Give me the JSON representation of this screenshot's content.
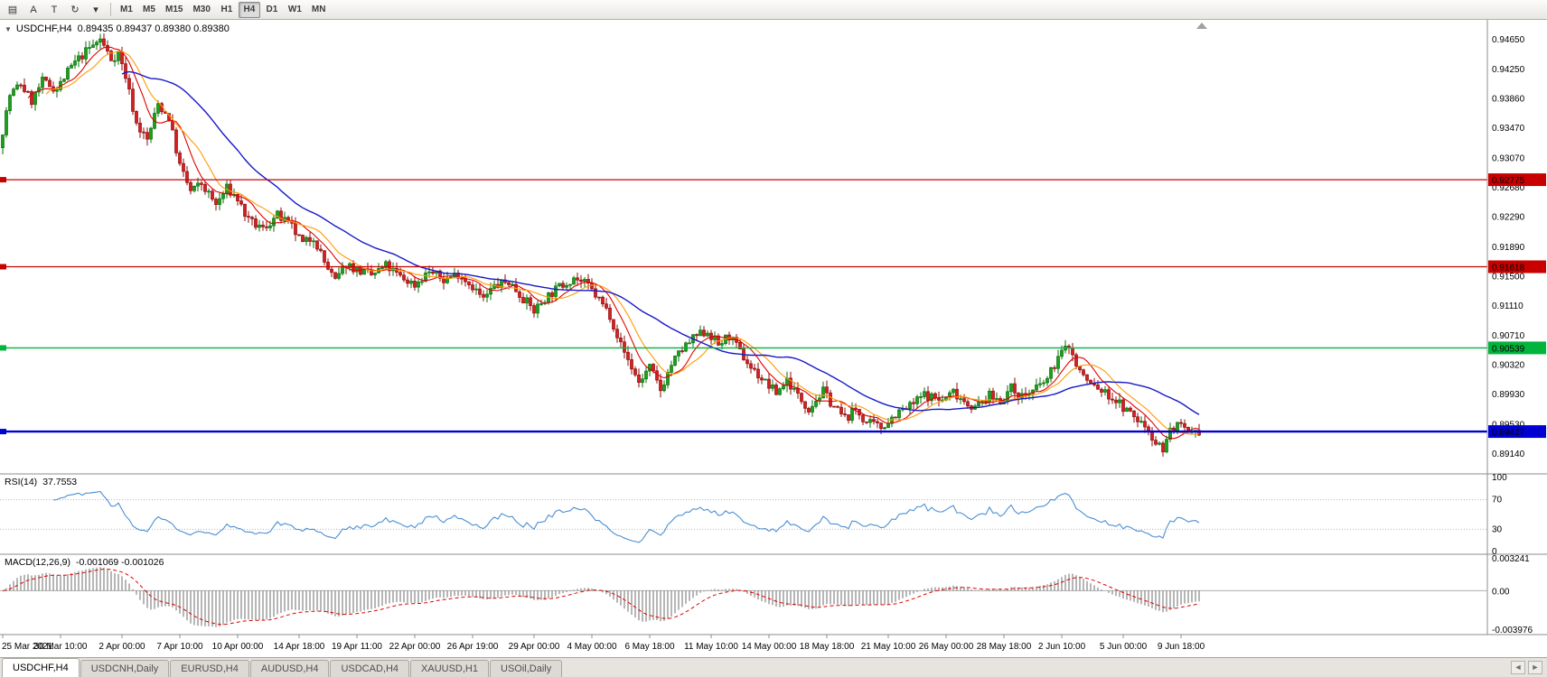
{
  "toolbar": {
    "left_buttons": [
      {
        "name": "chart-window-icon",
        "glyph": "▤"
      },
      {
        "name": "annotation-text-icon",
        "glyph": "A"
      },
      {
        "name": "text-box-icon",
        "glyph": "T"
      },
      {
        "name": "cycle-lines-icon",
        "glyph": "↻"
      },
      {
        "name": "dropdown-arrow-icon",
        "glyph": "▾"
      }
    ],
    "timeframes": [
      "M1",
      "M5",
      "M15",
      "M30",
      "H1",
      "H4",
      "D1",
      "W1",
      "MN"
    ],
    "active_timeframe": "H4"
  },
  "chart": {
    "title": "USDCHF,H4",
    "ohlc_readout": "0.89435 0.89437 0.89380 0.89380",
    "collapse_arrow": "▼",
    "price_axis_labels": [
      "0.94650",
      "0.94250",
      "0.93860",
      "0.93470",
      "0.93070",
      "0.92680",
      "0.92290",
      "0.91890",
      "0.91500",
      "0.91110",
      "0.90710",
      "0.90320",
      "0.89930",
      "0.89530",
      "0.89140"
    ],
    "hlines": [
      {
        "price": 0.92775,
        "label": "0.92775",
        "color": "#c80000",
        "width": 1.2
      },
      {
        "price": 0.91618,
        "label": "0.91618",
        "color": "#c80000",
        "width": 1.2
      },
      {
        "price": 0.90539,
        "label": "0.90539",
        "color": "#00b43c",
        "width": 1.4
      },
      {
        "price": 0.89427,
        "label": "0.89427",
        "color": "#0000d2",
        "width": 2.4
      }
    ],
    "colors": {
      "bull_fill": "#19a119",
      "bull_stroke": "#0b6e0b",
      "bear_fill": "#d42020",
      "bear_stroke": "#8f0b0b",
      "ma_fast": "#e00000",
      "ma_mid": "#ff9900",
      "ma_slow": "#1818c8",
      "axis_line": "#8c8c8c",
      "shift_marker": "#a0a0a0"
    }
  },
  "rsi": {
    "label": "RSI(14)",
    "value": "37.7553",
    "axis_labels": [
      "100",
      "70",
      "30",
      "0"
    ],
    "levels": [
      70,
      30
    ],
    "line_color": "#4a8fd2"
  },
  "macd": {
    "label": "MACD(12,26,9)",
    "values": "-0.001069 -0.001026",
    "axis_labels": [
      "0.003241",
      "0.00",
      "-0.003976"
    ],
    "axis_max": 0.003241,
    "axis_min": -0.003976,
    "hist_color": "#6e6e6e",
    "signal_color": "#e00000"
  },
  "time_axis": {
    "labels": [
      "25 Mar 2021",
      "30 Mar 10:00",
      "2 Apr 00:00",
      "7 Apr 10:00",
      "10 Apr 00:00",
      "14 Apr 18:00",
      "19 Apr 11:00",
      "22 Apr 00:00",
      "26 Apr 19:00",
      "29 Apr 00:00",
      "4 May 00:00",
      "6 May 18:00",
      "11 May 10:00",
      "14 May 00:00",
      "18 May 18:00",
      "21 May 10:00",
      "26 May 00:00",
      "28 May 18:00",
      "2 Jun 10:00",
      "5 Jun 00:00",
      "9 Jun 18:00"
    ]
  },
  "tabs": {
    "items": [
      "USDCHF,H4",
      "USDCNH,Daily",
      "EURUSD,H4",
      "AUDUSD,H4",
      "USDCAD,H4",
      "XAUUSD,H1",
      "USOil,Daily"
    ],
    "active_index": 0,
    "scroll_left": "◄",
    "scroll_right": "►"
  },
  "chart_data": {
    "type": "candlestick",
    "symbol": "USDCHF",
    "timeframe": "H4",
    "num_candles": 332,
    "seed": 7,
    "noise": 0.0013,
    "wick": 0.0009,
    "last_close": 0.8938,
    "y_range": [
      0.889,
      0.949
    ],
    "indicators": {
      "ma_periods": [
        8,
        13,
        34
      ],
      "rsi_period": 14,
      "macd": [
        12,
        26,
        9
      ]
    },
    "price_keyframes": [
      [
        0,
        0.932
      ],
      [
        3,
        0.939
      ],
      [
        6,
        0.9405
      ],
      [
        9,
        0.9382
      ],
      [
        12,
        0.9408
      ],
      [
        16,
        0.9398
      ],
      [
        20,
        0.9428
      ],
      [
        24,
        0.9448
      ],
      [
        28,
        0.9464
      ],
      [
        31,
        0.9438
      ],
      [
        33,
        0.9446
      ],
      [
        35,
        0.9415
      ],
      [
        38,
        0.9352
      ],
      [
        41,
        0.933
      ],
      [
        44,
        0.9378
      ],
      [
        47,
        0.936
      ],
      [
        50,
        0.9296
      ],
      [
        53,
        0.9262
      ],
      [
        56,
        0.9272
      ],
      [
        60,
        0.9244
      ],
      [
        63,
        0.9266
      ],
      [
        66,
        0.9252
      ],
      [
        69,
        0.9222
      ],
      [
        73,
        0.9212
      ],
      [
        77,
        0.923
      ],
      [
        81,
        0.9214
      ],
      [
        84,
        0.9192
      ],
      [
        87,
        0.9202
      ],
      [
        90,
        0.9168
      ],
      [
        93,
        0.9142
      ],
      [
        96,
        0.9166
      ],
      [
        99,
        0.9158
      ],
      [
        103,
        0.915
      ],
      [
        107,
        0.9163
      ],
      [
        111,
        0.9148
      ],
      [
        115,
        0.9138
      ],
      [
        119,
        0.9156
      ],
      [
        123,
        0.9144
      ],
      [
        127,
        0.9153
      ],
      [
        131,
        0.9136
      ],
      [
        134,
        0.9118
      ],
      [
        137,
        0.9136
      ],
      [
        141,
        0.9142
      ],
      [
        145,
        0.912
      ],
      [
        148,
        0.9103
      ],
      [
        151,
        0.912
      ],
      [
        155,
        0.9135
      ],
      [
        159,
        0.9148
      ],
      [
        163,
        0.9136
      ],
      [
        166,
        0.9118
      ],
      [
        169,
        0.9098
      ],
      [
        172,
        0.9058
      ],
      [
        175,
        0.9028
      ],
      [
        177,
        0.9008
      ],
      [
        180,
        0.9028
      ],
      [
        183,
        0.8998
      ],
      [
        186,
        0.9032
      ],
      [
        189,
        0.9052
      ],
      [
        193,
        0.907
      ],
      [
        196,
        0.9076
      ],
      [
        199,
        0.9058
      ],
      [
        202,
        0.907
      ],
      [
        205,
        0.9048
      ],
      [
        208,
        0.9028
      ],
      [
        212,
        0.9008
      ],
      [
        215,
        0.8994
      ],
      [
        218,
        0.9012
      ],
      [
        221,
        0.899
      ],
      [
        224,
        0.8974
      ],
      [
        228,
        0.8996
      ],
      [
        231,
        0.8976
      ],
      [
        234,
        0.896
      ],
      [
        237,
        0.8972
      ],
      [
        240,
        0.8954
      ],
      [
        244,
        0.8948
      ],
      [
        248,
        0.8966
      ],
      [
        252,
        0.8976
      ],
      [
        256,
        0.8992
      ],
      [
        261,
        0.8984
      ],
      [
        264,
        0.8996
      ],
      [
        267,
        0.8984
      ],
      [
        270,
        0.8974
      ],
      [
        274,
        0.899
      ],
      [
        277,
        0.8984
      ],
      [
        280,
        0.9
      ],
      [
        283,
        0.899
      ],
      [
        286,
        0.8996
      ],
      [
        290,
        0.9012
      ],
      [
        293,
        0.9042
      ],
      [
        296,
        0.9058
      ],
      [
        298,
        0.903
      ],
      [
        301,
        0.901
      ],
      [
        304,
        0.9
      ],
      [
        307,
        0.899
      ],
      [
        309,
        0.8984
      ],
      [
        312,
        0.897
      ],
      [
        315,
        0.8958
      ],
      [
        318,
        0.8946
      ],
      [
        320,
        0.8928
      ],
      [
        322,
        0.892
      ],
      [
        324,
        0.8944
      ],
      [
        326,
        0.8952
      ],
      [
        329,
        0.8938
      ],
      [
        332,
        0.8938
      ]
    ]
  }
}
